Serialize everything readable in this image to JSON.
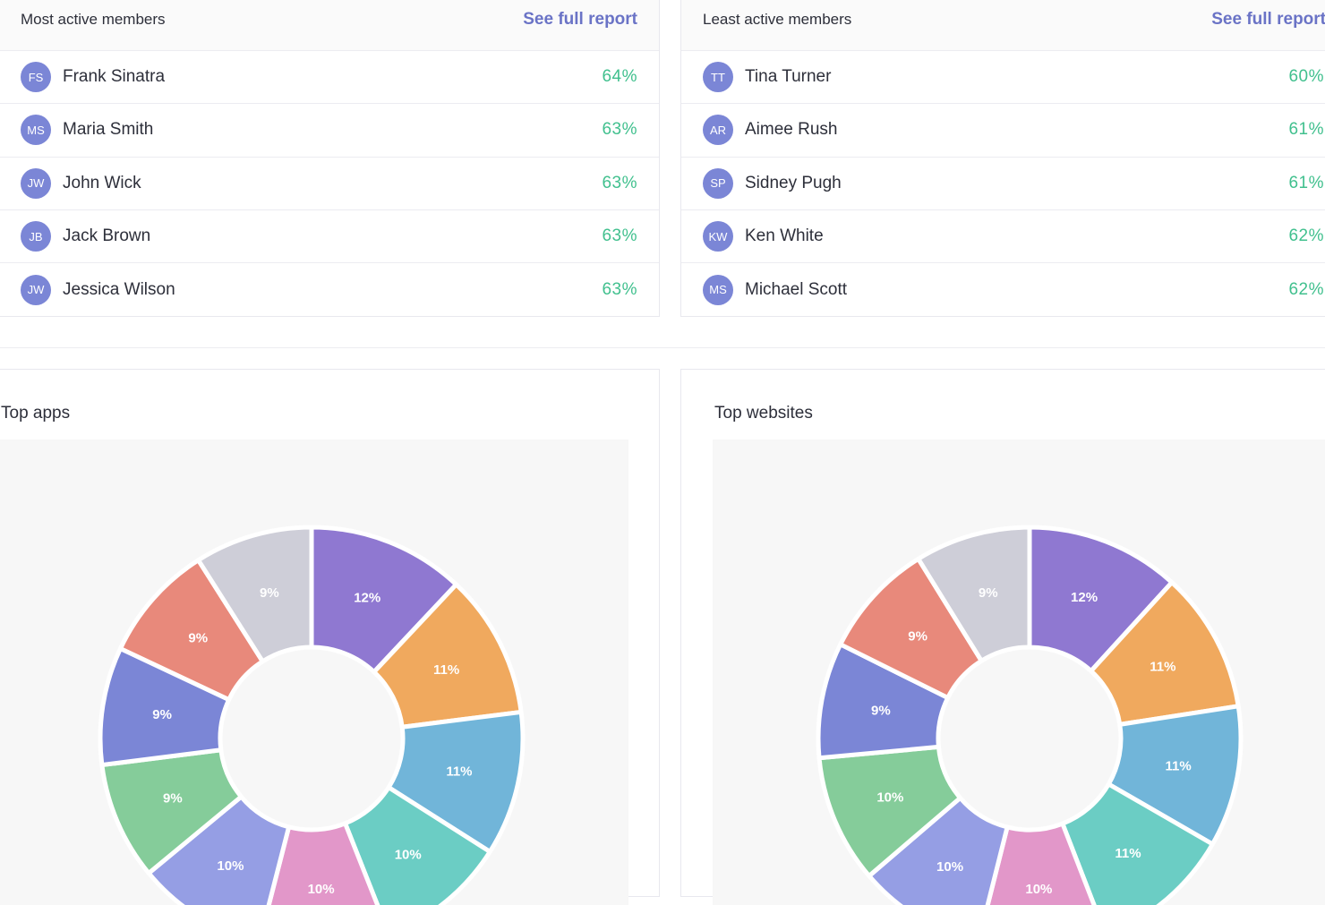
{
  "most_active": {
    "title": "Most active members",
    "link": "See full report",
    "members": [
      {
        "initials": "FS",
        "name": "Frank Sinatra",
        "pct": "64%"
      },
      {
        "initials": "MS",
        "name": "Maria Smith",
        "pct": "63%"
      },
      {
        "initials": "JW",
        "name": "John Wick",
        "pct": "63%"
      },
      {
        "initials": "JB",
        "name": "Jack Brown",
        "pct": "63%"
      },
      {
        "initials": "JW",
        "name": "Jessica Wilson",
        "pct": "63%"
      }
    ]
  },
  "least_active": {
    "title": "Least active members",
    "link": "See full report",
    "members": [
      {
        "initials": "TT",
        "name": "Tina Turner",
        "pct": "60%"
      },
      {
        "initials": "AR",
        "name": "Aimee Rush",
        "pct": "61%"
      },
      {
        "initials": "SP",
        "name": "Sidney Pugh",
        "pct": "61%"
      },
      {
        "initials": "KW",
        "name": "Ken White",
        "pct": "62%"
      },
      {
        "initials": "MS",
        "name": "Michael Scott",
        "pct": "62%"
      }
    ]
  },
  "colors": {
    "accent_link": "#6a73c6",
    "percent_green": "#41c08e",
    "avatar_bg": "#7b86d6"
  },
  "chart_data": [
    {
      "type": "pie",
      "title": "Top apps",
      "donut": true,
      "slices": [
        {
          "value": 12,
          "label": "12%",
          "color": "#8f78d1"
        },
        {
          "value": 11,
          "label": "11%",
          "color": "#f0a95e"
        },
        {
          "value": 11,
          "label": "11%",
          "color": "#71b5d9"
        },
        {
          "value": 10,
          "label": "10%",
          "color": "#6bcdc4"
        },
        {
          "value": 10,
          "label": "10%",
          "color": "#e297c9"
        },
        {
          "value": 10,
          "label": "10%",
          "color": "#959ee4"
        },
        {
          "value": 9,
          "label": "9%",
          "color": "#85cc9a"
        },
        {
          "value": 9,
          "label": "9%",
          "color": "#7b86d6"
        },
        {
          "value": 9,
          "label": "9%",
          "color": "#e8897b"
        },
        {
          "value": 9,
          "label": "9%",
          "color": "#ceced8"
        }
      ]
    },
    {
      "type": "pie",
      "title": "Top websites",
      "donut": true,
      "slices": [
        {
          "value": 12,
          "label": "12%",
          "color": "#8f78d1"
        },
        {
          "value": 11,
          "label": "11%",
          "color": "#f0a95e"
        },
        {
          "value": 11,
          "label": "11%",
          "color": "#71b5d9"
        },
        {
          "value": 11,
          "label": "11%",
          "color": "#6bcdc4"
        },
        {
          "value": 10,
          "label": "10%",
          "color": "#e297c9"
        },
        {
          "value": 10,
          "label": "10%",
          "color": "#959ee4"
        },
        {
          "value": 10,
          "label": "10%",
          "color": "#85cc9a"
        },
        {
          "value": 9,
          "label": "9%",
          "color": "#7b86d6"
        },
        {
          "value": 9,
          "label": "9%",
          "color": "#e8897b"
        },
        {
          "value": 9,
          "label": "9%",
          "color": "#ceced8"
        }
      ]
    }
  ]
}
